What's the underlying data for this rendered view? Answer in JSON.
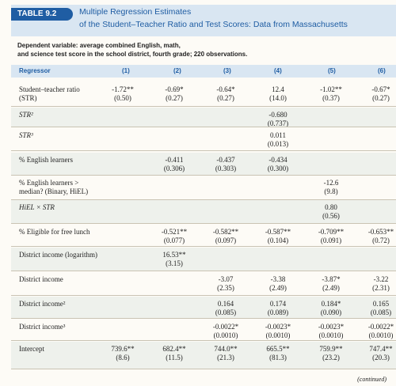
{
  "table": {
    "tag": "TABLE 9.2",
    "title_line1": "Multiple Regression Estimates",
    "title_line2": "of the Student–Teacher Ratio and Test Scores: Data from Massachusetts",
    "dependent_line1": "Dependent variable: average combined English, math,",
    "dependent_line2": "and science test score in the school district, fourth grade; 220 observations.",
    "regressor_header": "Regressor",
    "columns": [
      "(1)",
      "(2)",
      "(3)",
      "(4)",
      "(5)",
      "(6)"
    ],
    "continued": "(continued)"
  },
  "rows": [
    {
      "label": [
        "Student–teacher ratio",
        "(STR)"
      ],
      "cells": [
        [
          "-1.72**",
          "(0.50)"
        ],
        [
          "-0.69*",
          "(0.27)"
        ],
        [
          "-0.64*",
          "(0.27)"
        ],
        [
          "12.4",
          "(14.0)"
        ],
        [
          "-1.02**",
          "(0.37)"
        ],
        [
          "-0.67*",
          "(0.27)"
        ]
      ]
    },
    {
      "label": [
        "STR²"
      ],
      "italic": true,
      "cells": [
        null,
        null,
        null,
        [
          "-0.680",
          "(0.737)"
        ],
        null,
        null
      ]
    },
    {
      "label": [
        "STR³"
      ],
      "italic": true,
      "cells": [
        null,
        null,
        null,
        [
          "0.011",
          "(0.013)"
        ],
        null,
        null
      ]
    },
    {
      "label": [
        "% English learners"
      ],
      "cells": [
        null,
        [
          "-0.411",
          "(0.306)"
        ],
        [
          "-0.437",
          "(0.303)"
        ],
        [
          "-0.434",
          "(0.300)"
        ],
        null,
        null
      ]
    },
    {
      "label": [
        "% English learners >",
        "median? (Binary, HiEL)"
      ],
      "cells": [
        null,
        null,
        null,
        null,
        [
          "-12.6",
          "(9.8)"
        ],
        null
      ]
    },
    {
      "label": [
        "HiEL × STR"
      ],
      "italic": true,
      "cells": [
        null,
        null,
        null,
        null,
        [
          "0.80",
          "(0.56)"
        ],
        null
      ]
    },
    {
      "label": [
        "% Eligible for free lunch"
      ],
      "cells": [
        null,
        [
          "-0.521**",
          "(0.077)"
        ],
        [
          "-0.582**",
          "(0.097)"
        ],
        [
          "-0.587**",
          "(0.104)"
        ],
        [
          "-0.709**",
          "(0.091)"
        ],
        [
          "-0.653**",
          "(0.72)"
        ]
      ]
    },
    {
      "label": [
        "District income (logarithm)"
      ],
      "cells": [
        null,
        [
          "16.53**",
          "(3.15)"
        ],
        null,
        null,
        null,
        null
      ]
    },
    {
      "label": [
        "District income"
      ],
      "cells": [
        null,
        null,
        [
          "-3.07",
          "(2.35)"
        ],
        [
          "-3.38",
          "(2.49)"
        ],
        [
          "-3.87*",
          "(2.49)"
        ],
        [
          "-3.22",
          "(2.31)"
        ]
      ]
    },
    {
      "label": [
        "District income²"
      ],
      "cells": [
        null,
        null,
        [
          "0.164",
          "(0.085)"
        ],
        [
          "0.174",
          "(0.089)"
        ],
        [
          "0.184*",
          "(0.090)"
        ],
        [
          "0.165",
          "(0.085)"
        ]
      ]
    },
    {
      "label": [
        "District income³"
      ],
      "cells": [
        null,
        null,
        [
          "-0.0022*",
          "(0.0010)"
        ],
        [
          "-0.0023*",
          "(0.0010)"
        ],
        [
          "-0.0023*",
          "(0.0010)"
        ],
        [
          "-0.0022*",
          "(0.0010)"
        ]
      ]
    },
    {
      "label": [
        "Intercept"
      ],
      "cells": [
        [
          "739.6**",
          "(8.6)"
        ],
        [
          "682.4**",
          "(11.5)"
        ],
        [
          "744.0**",
          "(21.3)"
        ],
        [
          "665.5**",
          "(81.3)"
        ],
        [
          "759.9**",
          "(23.2)"
        ],
        [
          "747.4**",
          "(20.3)"
        ]
      ]
    }
  ]
}
